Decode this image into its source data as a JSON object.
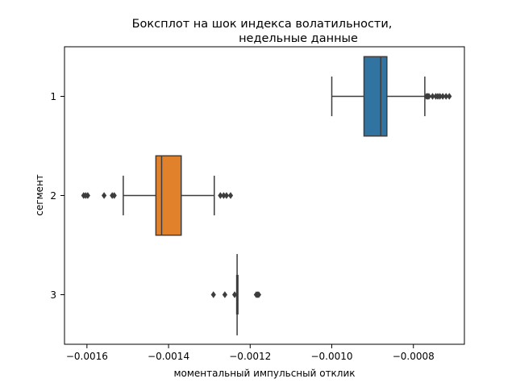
{
  "chart_data": {
    "type": "boxplot",
    "orientation": "horizontal",
    "title_lines": [
      "Боксплот на шок индекса волатильности,",
      "недельные данные"
    ],
    "xlabel": "моментальный импульсный отклик",
    "ylabel": "сегмент",
    "xlim": [
      -0.001655,
      -0.000675
    ],
    "xticks": [
      -0.0016,
      -0.0014,
      -0.0012,
      -0.001,
      -0.0008
    ],
    "xtick_labels": [
      "−0.0016",
      "−0.0014",
      "−0.0012",
      "−0.0010",
      "−0.0008"
    ],
    "categories": [
      "1",
      "2",
      "3"
    ],
    "series": [
      {
        "name": "1",
        "color": "#3274a1",
        "whisker_low": -0.001,
        "q1": -0.000921,
        "median": -0.00088,
        "q3": -0.000865,
        "whisker_high": -0.000772,
        "outliers": [
          -0.000768,
          -0.000765,
          -0.000762,
          -0.000753,
          -0.000745,
          -0.00074,
          -0.000735,
          -0.000728,
          -0.00072,
          -0.000712
        ]
      },
      {
        "name": "2",
        "color": "#e1812c",
        "whisker_low": -0.001511,
        "q1": -0.001431,
        "median": -0.001417,
        "q3": -0.001369,
        "whisker_high": -0.001288,
        "outliers": [
          -0.001608,
          -0.001603,
          -0.001598,
          -0.001558,
          -0.001538,
          -0.001533,
          -0.001273,
          -0.001265,
          -0.001258,
          -0.001248
        ]
      },
      {
        "name": "3",
        "color": "#3a923a",
        "whisker_low": -0.001233,
        "q1": -0.001232,
        "median": -0.001232,
        "q3": -0.001231,
        "whisker_high": -0.00123,
        "whisker_extent": 0.82,
        "outliers": [
          -0.00129,
          -0.001262,
          -0.001238,
          -0.001185,
          -0.001182,
          -0.001179
        ]
      }
    ]
  }
}
